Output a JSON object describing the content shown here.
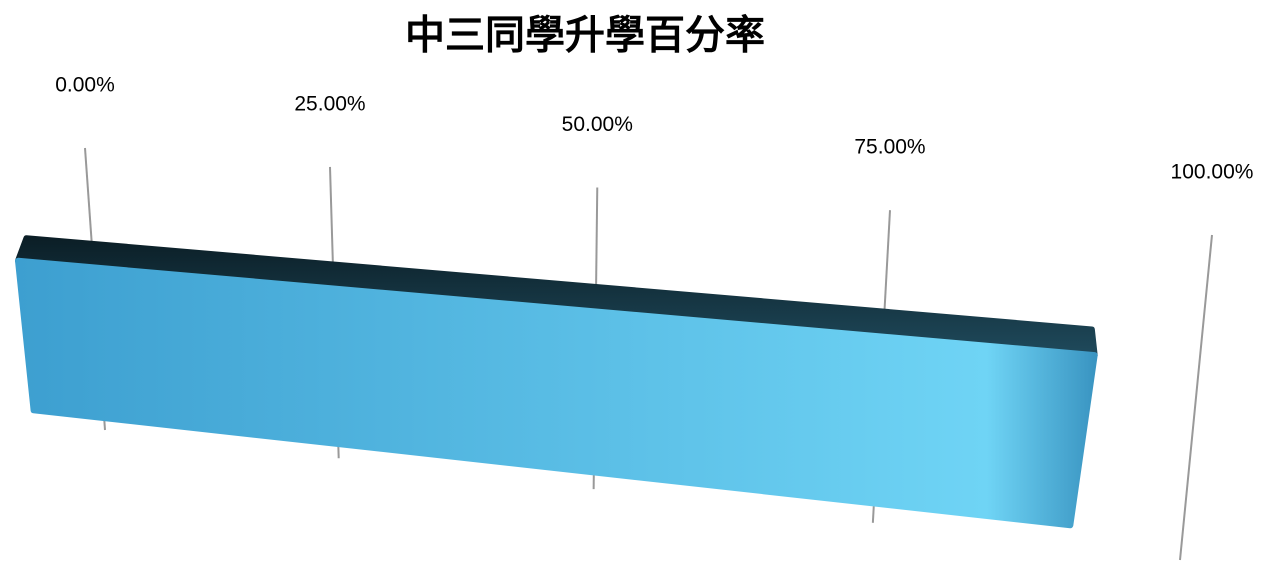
{
  "chart_data": {
    "type": "bar3d",
    "title": "中三同學升學百分率",
    "values": [
      92
    ],
    "color": "#4eb3e3",
    "xlim": [
      0,
      100
    ],
    "xticks": [
      {
        "value": 0,
        "label": "0.00%"
      },
      {
        "value": 25,
        "label": "25.00%"
      },
      {
        "value": 50,
        "label": "50.00%"
      },
      {
        "value": 75,
        "label": "75.00%"
      },
      {
        "value": 100,
        "label": "100.00%"
      }
    ],
    "grid": true
  }
}
